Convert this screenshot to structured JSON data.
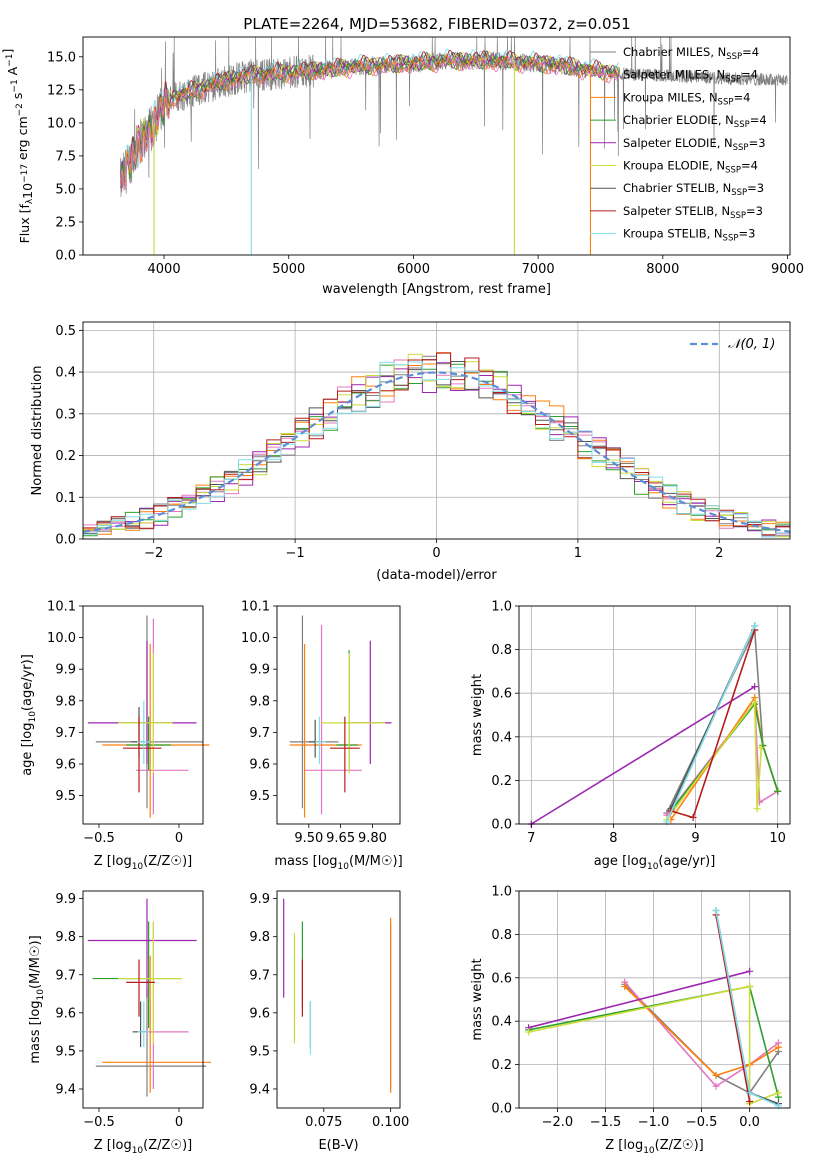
{
  "colors": {
    "s0": "#808080",
    "s1": "#e377c2",
    "s2": "#ff7f0e",
    "s3": "#2ca02c",
    "s4": "#9c27b0",
    "s5": "#cddc39",
    "s6": "#555555",
    "s7": "#b71c1c",
    "s8": "#80deea",
    "gauss": "#5b8fd6"
  },
  "chart_data": [
    {
      "id": "spectrum",
      "type": "line",
      "title": "PLATE=2264, MJD=53682, FIBERID=0372, z=0.051",
      "xlabel": "wavelength [Angstrom, rest frame]",
      "ylabel": "Flux [f_λ 10^-17 erg cm^-2 s^-1 A^-1]",
      "xlim": [
        3350,
        9020
      ],
      "ylim": [
        0,
        16.5
      ],
      "xticks": [
        4000,
        5000,
        6000,
        7000,
        8000,
        9000
      ],
      "yticks": [
        0.0,
        2.5,
        5.0,
        7.5,
        10.0,
        12.5,
        15.0
      ],
      "legend_position": "right",
      "series": [
        {
          "name": "Chabrier MILES, N_SSP=4",
          "label_main": "Chabrier MILES, N",
          "label_sub": "SSP",
          "label_tail": "=4"
        },
        {
          "name": "Salpeter MILES, N_SSP=4",
          "label_main": "Salpeter MILES, N",
          "label_sub": "SSP",
          "label_tail": "=4"
        },
        {
          "name": "Kroupa MILES, N_SSP=4",
          "label_main": "Kroupa MILES, N",
          "label_sub": "SSP",
          "label_tail": "=4"
        },
        {
          "name": "Chabrier ELODIE, N_SSP=4",
          "label_main": "Chabrier ELODIE, N",
          "label_sub": "SSP",
          "label_tail": "=4"
        },
        {
          "name": "Salpeter ELODIE, N_SSP=3",
          "label_main": "Salpeter ELODIE, N",
          "label_sub": "SSP",
          "label_tail": "=3"
        },
        {
          "name": "Kroupa ELODIE, N_SSP=4",
          "label_main": "Kroupa ELODIE, N",
          "label_sub": "SSP",
          "label_tail": "=4"
        },
        {
          "name": "Chabrier STELIB, N_SSP=3",
          "label_main": "Chabrier STELIB, N",
          "label_sub": "SSP",
          "label_tail": "=3"
        },
        {
          "name": "Salpeter STELIB, N_SSP=3",
          "label_main": "Salpeter STELIB, N",
          "label_sub": "SSP",
          "label_tail": "=3"
        },
        {
          "name": "Kroupa STELIB, N_SSP=3",
          "label_main": "Kroupa STELIB, N",
          "label_sub": "SSP",
          "label_tail": "=3"
        }
      ],
      "continuum": {
        "x": [
          3650,
          3700,
          3800,
          3900,
          4000,
          4100,
          4300,
          4500,
          4700,
          5000,
          5300,
          5600,
          6000,
          6300,
          6600,
          7000,
          7200,
          7400,
          7500,
          7700
        ],
        "y": [
          5.5,
          6.5,
          8.5,
          9.5,
          11.5,
          12.0,
          12.6,
          13.2,
          13.6,
          13.8,
          14.0,
          14.3,
          14.5,
          14.7,
          14.7,
          14.5,
          14.3,
          14.0,
          13.9,
          13.7
        ]
      },
      "dips": [
        {
          "x": 3920,
          "y": 0
        },
        {
          "x": 4700,
          "y": 0
        },
        {
          "x": 6810,
          "y": 0
        },
        {
          "x": 7420,
          "y": 0
        }
      ]
    },
    {
      "id": "residuals",
      "type": "histogram",
      "xlabel": "(data-model)/error",
      "ylabel": "Normed distribution",
      "xlim": [
        -2.5,
        2.5
      ],
      "ylim": [
        0,
        0.52
      ],
      "xticks": [
        -2,
        -1,
        0,
        1,
        2
      ],
      "yticks": [
        0.0,
        0.1,
        0.2,
        0.3,
        0.4,
        0.5
      ],
      "legend_position": "top-right",
      "legend_main": "N(0,1)",
      "legend_math": "𝒩(0, 1)",
      "bin_width": 0.1,
      "bin_start": -2.5,
      "gaussian": {
        "mu": 0,
        "sigma": 1
      }
    },
    {
      "id": "age_vs_Z",
      "type": "errorbar",
      "xlabel": "Z [log10(Z/Z☉)]",
      "xlabel_main": "Z [log",
      "xlabel_sub": "10",
      "xlabel_tail": "(Z/Z☉)]",
      "ylabel": "age  [log10(age/yr)]",
      "xlim": [
        -0.6,
        0.15
      ],
      "ylim": [
        9.41,
        10.1
      ],
      "xticks": [
        -0.5,
        0.0
      ],
      "yticks": [
        9.5,
        9.6,
        9.7,
        9.8,
        9.9,
        10.0,
        10.1
      ],
      "points": [
        {
          "x": -0.2,
          "y": 9.67,
          "xerr": [
            0.32,
            0.35
          ],
          "yerr": [
            0.21,
            0.4
          ],
          "c": 0
        },
        {
          "x": -0.16,
          "y": 9.58,
          "xerr": [
            0.11,
            0.22
          ],
          "yerr": [
            0.14,
            0.48
          ],
          "c": 1
        },
        {
          "x": -0.18,
          "y": 9.66,
          "xerr": [
            0.3,
            0.37
          ],
          "yerr": [
            0.23,
            0.32
          ],
          "c": 2
        },
        {
          "x": -0.19,
          "y": 9.66,
          "xerr": [
            0.14,
            0.14
          ],
          "yerr": [
            0.08,
            0.09
          ],
          "c": 3
        },
        {
          "x": -0.2,
          "y": 9.73,
          "xerr": [
            0.37,
            0.31
          ],
          "yerr": [
            0.13,
            0.26
          ],
          "c": 4
        },
        {
          "x": -0.16,
          "y": 9.73,
          "xerr": [
            0.22,
            0.12
          ],
          "yerr": [
            0.16,
            0.22
          ],
          "c": 5
        },
        {
          "x": -0.25,
          "y": 9.67,
          "xerr": [
            0.05,
            0.03
          ],
          "yerr": [
            0.05,
            0.11
          ],
          "c": 6
        },
        {
          "x": -0.25,
          "y": 9.65,
          "xerr": [
            0.1,
            0.14
          ],
          "yerr": [
            0.14,
            0.1
          ],
          "c": 7
        },
        {
          "x": -0.22,
          "y": 9.67,
          "xerr": [
            0.04,
            0.04
          ],
          "yerr": [
            0.07,
            0.13
          ],
          "c": 8
        }
      ]
    },
    {
      "id": "age_vs_mass",
      "type": "errorbar",
      "xlabel": "mass [log10(M/M☉)]",
      "xlabel_main": "mass [log",
      "xlabel_sub": "10",
      "xlabel_tail": "(M/M☉)]",
      "xlim": [
        9.35,
        9.93
      ],
      "ylim": [
        9.41,
        10.1
      ],
      "xticks": [
        9.5,
        9.65,
        9.8
      ],
      "xticklabels": [
        "9.50",
        "9.65",
        "9.80"
      ],
      "yticks": [
        9.5,
        9.6,
        9.7,
        9.8,
        9.9,
        10.0,
        10.1
      ],
      "points": [
        {
          "x": 9.47,
          "y": 9.67,
          "xerr": [
            0.06,
            0.17
          ],
          "yerr": [
            0.21,
            0.4
          ],
          "c": 0
        },
        {
          "x": 9.56,
          "y": 9.58,
          "xerr": [
            0.08,
            0.19
          ],
          "yerr": [
            0.14,
            0.46
          ],
          "c": 1
        },
        {
          "x": 9.48,
          "y": 9.66,
          "xerr": [
            0.07,
            0.27
          ],
          "yerr": [
            0.23,
            0.32
          ],
          "c": 2
        },
        {
          "x": 9.69,
          "y": 9.66,
          "xerr": [
            0.06,
            0.04
          ],
          "yerr": [
            0.08,
            0.3
          ],
          "c": 3
        },
        {
          "x": 9.79,
          "y": 9.73,
          "xerr": [
            0.1,
            0.1
          ],
          "yerr": [
            0.13,
            0.26
          ],
          "c": 4
        },
        {
          "x": 9.69,
          "y": 9.73,
          "xerr": [
            0.13,
            0.17
          ],
          "yerr": [
            0.16,
            0.22
          ],
          "c": 5
        },
        {
          "x": 9.53,
          "y": 9.67,
          "xerr": [
            0.03,
            0.03
          ],
          "yerr": [
            0.05,
            0.07
          ],
          "c": 6
        },
        {
          "x": 9.67,
          "y": 9.65,
          "xerr": [
            0.07,
            0.07
          ],
          "yerr": [
            0.14,
            0.1
          ],
          "c": 7
        },
        {
          "x": 9.55,
          "y": 9.67,
          "xerr": [
            0.02,
            0.03
          ],
          "yerr": [
            0.07,
            0.08
          ],
          "c": 8
        }
      ]
    },
    {
      "id": "mw_vs_age",
      "type": "line",
      "xlabel": "age  [log10(age/yr)]",
      "ylabel": "mass weight",
      "xlim": [
        6.85,
        10.15
      ],
      "ylim": [
        0,
        1.0
      ],
      "xticks": [
        7,
        8,
        9,
        10
      ],
      "yticks": [
        0.0,
        0.2,
        0.4,
        0.6,
        0.8,
        1.0
      ],
      "series": [
        {
          "x": [
            8.65,
            9.72,
            9.82,
            10.0
          ],
          "y": [
            0.05,
            0.89,
            0.36,
            0.15
          ],
          "c": 0
        },
        {
          "x": [
            8.65,
            9.72,
            9.78,
            10.0
          ],
          "y": [
            0.04,
            0.56,
            0.1,
            0.15
          ],
          "c": 1
        },
        {
          "x": [
            8.7,
            9.72,
            9.82,
            10.0
          ],
          "y": [
            0.02,
            0.58,
            0.36,
            0.15
          ],
          "c": 2
        },
        {
          "x": [
            8.7,
            9.72,
            9.82,
            10.0
          ],
          "y": [
            0.06,
            0.55,
            0.36,
            0.15
          ],
          "c": 3
        },
        {
          "x": [
            7.0,
            9.72
          ],
          "y": [
            0.0,
            0.63
          ],
          "c": 4
        },
        {
          "x": [
            8.65,
            9.72,
            9.75,
            9.8
          ],
          "y": [
            0.02,
            0.56,
            0.07,
            0.35
          ],
          "c": 5
        },
        {
          "x": [
            8.7,
            9.72
          ],
          "y": [
            0.07,
            0.91
          ],
          "c": 6
        },
        {
          "x": [
            8.7,
            8.97,
            9.72
          ],
          "y": [
            0.06,
            0.03,
            0.89
          ],
          "c": 7
        },
        {
          "x": [
            8.65,
            9.72
          ],
          "y": [
            0.01,
            0.91
          ],
          "c": 8
        }
      ]
    },
    {
      "id": "mass_vs_Z",
      "type": "errorbar",
      "xlabel": "Z [log10(Z/Z☉)]",
      "xlabel_main": "Z [log",
      "xlabel_sub": "10",
      "xlabel_tail": "(Z/Z☉)]",
      "ylabel": "mass [log10(M/M☉)]",
      "xlim": [
        -0.6,
        0.15
      ],
      "ylim": [
        9.35,
        9.92
      ],
      "xticks": [
        -0.5,
        0.0
      ],
      "yticks": [
        9.4,
        9.5,
        9.6,
        9.7,
        9.8,
        9.9
      ],
      "points": [
        {
          "x": -0.2,
          "y": 9.46,
          "xerr": [
            0.32,
            0.37
          ],
          "yerr": [
            0.08,
            0.2
          ],
          "c": 0
        },
        {
          "x": -0.16,
          "y": 9.55,
          "xerr": [
            0.11,
            0.22
          ],
          "yerr": [
            0.15,
            0.29
          ],
          "c": 1
        },
        {
          "x": -0.18,
          "y": 9.47,
          "xerr": [
            0.3,
            0.38
          ],
          "yerr": [
            0.08,
            0.28
          ],
          "c": 2
        },
        {
          "x": -0.19,
          "y": 9.69,
          "xerr": [
            0.35,
            0.2
          ],
          "yerr": [
            0.13,
            0.15
          ],
          "c": 3
        },
        {
          "x": -0.2,
          "y": 9.79,
          "xerr": [
            0.37,
            0.31
          ],
          "yerr": [
            0.15,
            0.11
          ],
          "c": 4
        },
        {
          "x": -0.16,
          "y": 9.69,
          "xerr": [
            0.22,
            0.18
          ],
          "yerr": [
            0.17,
            0.15
          ],
          "c": 5
        },
        {
          "x": -0.24,
          "y": 9.55,
          "xerr": [
            0.05,
            0.04
          ],
          "yerr": [
            0.04,
            0.08
          ],
          "c": 6
        },
        {
          "x": -0.25,
          "y": 9.68,
          "xerr": [
            0.08,
            0.1
          ],
          "yerr": [
            0.09,
            0.06
          ],
          "c": 7
        },
        {
          "x": -0.22,
          "y": 9.55,
          "xerr": [
            0.04,
            0.03
          ],
          "yerr": [
            0.04,
            0.08
          ],
          "c": 8
        }
      ]
    },
    {
      "id": "mass_vs_EBV",
      "type": "errorbar",
      "xlabel": "E(B-V)",
      "xlim": [
        0.0575,
        0.1035
      ],
      "ylim": [
        9.35,
        9.92
      ],
      "xticks": [
        0.075,
        0.1
      ],
      "xticklabels": [
        "0.075",
        "0.100"
      ],
      "yticks": [
        9.4,
        9.5,
        9.6,
        9.7,
        9.8,
        9.9
      ],
      "points": [
        {
          "x": 0.1,
          "y": 9.55,
          "xerr": [
            0,
            0
          ],
          "yerr": [
            0.15,
            0.28
          ],
          "c": 1
        },
        {
          "x": 0.1,
          "y": 9.47,
          "xerr": [
            0,
            0
          ],
          "yerr": [
            0.08,
            0.38
          ],
          "c": 2
        },
        {
          "x": 0.067,
          "y": 9.69,
          "xerr": [
            0,
            0
          ],
          "yerr": [
            0.08,
            0.15
          ],
          "c": 3
        },
        {
          "x": 0.06,
          "y": 9.79,
          "xerr": [
            0,
            0
          ],
          "yerr": [
            0.15,
            0.11
          ],
          "c": 4
        },
        {
          "x": 0.064,
          "y": 9.69,
          "xerr": [
            0,
            0
          ],
          "yerr": [
            0.17,
            0.12
          ],
          "c": 5
        },
        {
          "x": 0.07,
          "y": 9.55,
          "xerr": [
            0,
            0
          ],
          "yerr": [
            0.04,
            0.08
          ],
          "c": 6
        },
        {
          "x": 0.067,
          "y": 9.68,
          "xerr": [
            0,
            0
          ],
          "yerr": [
            0.09,
            0.06
          ],
          "c": 7
        },
        {
          "x": 0.07,
          "y": 9.55,
          "xerr": [
            0,
            0
          ],
          "yerr": [
            0.06,
            0.08
          ],
          "c": 8
        }
      ]
    },
    {
      "id": "mw_vs_Z",
      "type": "line",
      "xlabel": "Z [log10(Z/Z☉)]",
      "xlabel_main": "Z [log",
      "xlabel_sub": "10",
      "xlabel_tail": "(Z/Z☉)]",
      "ylabel": "mass weight",
      "xlim": [
        -2.4,
        0.42
      ],
      "ylim": [
        0,
        1.0
      ],
      "xticks": [
        -2.0,
        -1.5,
        -1.0,
        -0.5,
        0.0
      ],
      "xticklabels": [
        "−2.0",
        "−1.5",
        "−1.0",
        "−0.5",
        "0.0"
      ],
      "yticks": [
        0.0,
        0.2,
        0.4,
        0.6,
        0.8,
        1.0
      ],
      "series": [
        {
          "x": [
            -1.3,
            -0.35,
            0.0,
            0.3
          ],
          "y": [
            0.57,
            0.15,
            0.07,
            0.26
          ],
          "c": 0
        },
        {
          "x": [
            -1.3,
            -0.35,
            0.0,
            0.3
          ],
          "y": [
            0.58,
            0.1,
            0.2,
            0.3
          ],
          "c": 1
        },
        {
          "x": [
            -1.3,
            -0.35,
            0.0,
            0.3
          ],
          "y": [
            0.56,
            0.15,
            0.2,
            0.28
          ],
          "c": 2
        },
        {
          "x": [
            -2.3,
            0.0,
            0.3
          ],
          "y": [
            0.36,
            0.56,
            0.05
          ],
          "c": 3
        },
        {
          "x": [
            -2.3,
            0.0
          ],
          "y": [
            0.37,
            0.63
          ],
          "c": 4
        },
        {
          "x": [
            -2.3,
            0.0,
            0.0,
            0.3
          ],
          "y": [
            0.35,
            0.56,
            0.02,
            0.07
          ],
          "c": 5
        },
        {
          "x": [
            -0.35,
            0.0,
            0.3
          ],
          "y": [
            0.91,
            0.07,
            0.02
          ],
          "c": 6
        },
        {
          "x": [
            -0.35,
            0.0
          ],
          "y": [
            0.89,
            0.03
          ],
          "c": 7
        },
        {
          "x": [
            -0.35,
            0.0,
            0.3
          ],
          "y": [
            0.91,
            0.07,
            0.01
          ],
          "c": 8
        }
      ]
    }
  ]
}
